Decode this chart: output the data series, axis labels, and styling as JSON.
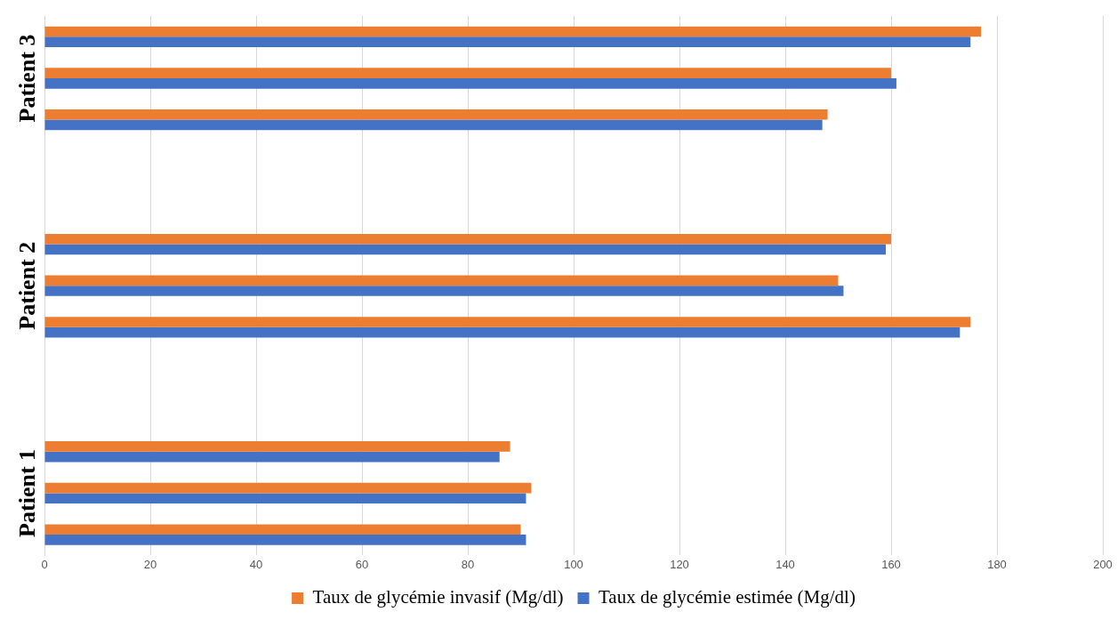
{
  "chart_data": {
    "type": "bar",
    "orientation": "horizontal",
    "categories": [
      null,
      "Patient 3",
      null,
      null,
      null,
      null,
      "Patient 2",
      null,
      null,
      null,
      null,
      "Patient 1",
      null
    ],
    "series": [
      {
        "name": "Taux de glycémie invasif (Mg/dl)",
        "color": "#ed7d31",
        "values": [
          177,
          160,
          148,
          null,
          null,
          160,
          150,
          175,
          null,
          null,
          88,
          92,
          90
        ]
      },
      {
        "name": "Taux de glycémie estimée (Mg/dl)",
        "color": "#4472c4",
        "values": [
          175,
          161,
          147,
          null,
          null,
          159,
          151,
          173,
          null,
          null,
          86,
          91,
          91
        ]
      }
    ],
    "xlim": [
      0,
      200
    ],
    "xticks": [
      0,
      20,
      40,
      60,
      80,
      100,
      120,
      140,
      160,
      180,
      200
    ],
    "grid": "x",
    "legend": "bottom"
  }
}
